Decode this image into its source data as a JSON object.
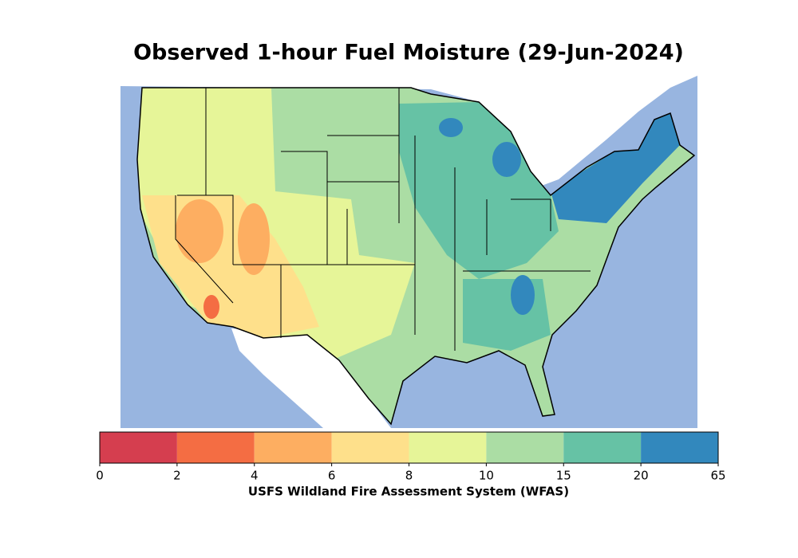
{
  "title": "Observed 1-hour Fuel Moisture (29-Jun-2024)",
  "colorbar": {
    "ticks": [
      0,
      2,
      4,
      6,
      8,
      10,
      15,
      20,
      65
    ],
    "colors": [
      "#d53e4f",
      "#f46d43",
      "#fdae61",
      "#fee08b",
      "#e6f598",
      "#abdda4",
      "#66c2a5",
      "#3288bd"
    ],
    "label": "USFS Wildland Fire Assessment System (WFAS)"
  }
}
